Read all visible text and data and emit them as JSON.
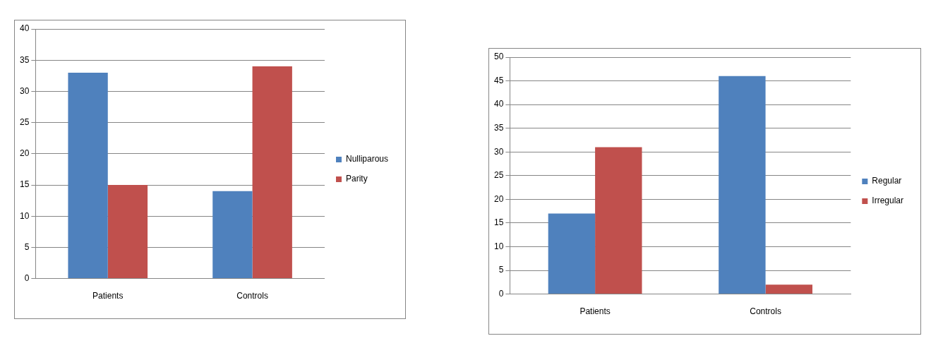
{
  "chart_data": [
    {
      "type": "bar",
      "categories": [
        "Patients",
        "Controls"
      ],
      "series": [
        {
          "name": "Nulliparous",
          "color": "#4f81bd",
          "values": [
            33,
            14
          ]
        },
        {
          "name": "Parity",
          "color": "#c0504d",
          "values": [
            15,
            34
          ]
        }
      ],
      "ylim": [
        0,
        40
      ],
      "yticks": [
        0,
        5,
        10,
        15,
        20,
        25,
        30,
        35,
        40
      ],
      "grid": "y",
      "legend": "right"
    },
    {
      "type": "bar",
      "categories": [
        "Patients",
        "Controls"
      ],
      "series": [
        {
          "name": "Regular",
          "color": "#4f81bd",
          "values": [
            17,
            46
          ]
        },
        {
          "name": "Irregular",
          "color": "#c0504d",
          "values": [
            31,
            2
          ]
        }
      ],
      "ylim": [
        0,
        50
      ],
      "yticks": [
        0,
        5,
        10,
        15,
        20,
        25,
        30,
        35,
        40,
        45,
        50
      ],
      "grid": "y",
      "legend": "right"
    }
  ]
}
